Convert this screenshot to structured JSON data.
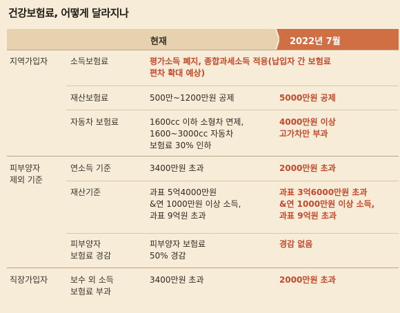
{
  "title": "건강보험료, 어떻게 달라지나",
  "header": {
    "now": "현재",
    "future": "2022년 7월"
  },
  "groups": [
    {
      "category": [
        "지역가입자"
      ],
      "rows": [
        {
          "item": [
            "소득보험료"
          ],
          "now": [],
          "future": [
            "평가소득 폐지, 종합과세소득 적용(납입자 간 보험료",
            "편차 확대 예상)"
          ]
        },
        {
          "item": [
            "재산보험료"
          ],
          "now": [
            "500만~1200만원 공제"
          ],
          "future": [
            "5000만원 공제"
          ]
        },
        {
          "item": [
            "자동차 보험료"
          ],
          "now": [
            "1600cc 이하 소형차 면제,",
            "1600~3000cc 자동차",
            "보험료 30% 인하"
          ],
          "future": [
            "4000만원 이상",
            "고가차만 부과"
          ]
        }
      ]
    },
    {
      "category": [
        "피부양자",
        "제외 기준"
      ],
      "rows": [
        {
          "item": [
            "연소득 기준"
          ],
          "now": [
            "3400만원 초과"
          ],
          "future": [
            "2000만원 초과"
          ]
        },
        {
          "item": [
            "재산기준"
          ],
          "now": [
            "과표 5억4000만원",
            "&연 1000만원 이상 소득,",
            "과표 9억원 초과"
          ],
          "future": [
            "과표 3억6000만원 초과",
            "&연 1000만원 이상 소득,",
            "과표 9억원 초과"
          ]
        },
        {
          "item": [
            "피부양자",
            "보험료 경감"
          ],
          "now": [
            "피부양자 보험료",
            "50% 경감"
          ],
          "future": [
            "경감 없음"
          ]
        }
      ]
    },
    {
      "category": [
        "직장가입자"
      ],
      "rows": [
        {
          "item": [
            "보수 외 소득",
            "보험료 부과"
          ],
          "now": [
            "3400만원 초과"
          ],
          "future": [
            "2000만원 초과"
          ]
        }
      ]
    }
  ]
}
